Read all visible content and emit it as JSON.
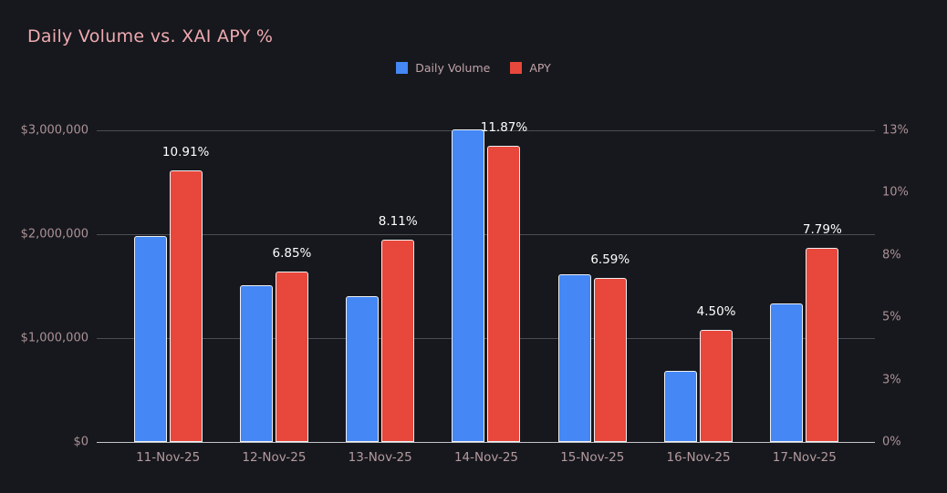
{
  "title": "Daily Volume vs. XAI APY %",
  "colors": {
    "background": "#16181d",
    "title": "#eeaab0",
    "axis_label": "#ac9196",
    "gridline": "#4b4d54",
    "baseline": "#c3c5c9",
    "value_label": "#ffffff",
    "volume_blue": "#4487f5",
    "apy_red": "#e8473c"
  },
  "chart_data": {
    "type": "bar",
    "title": "Daily Volume vs. XAI APY %",
    "grid": "horizontal",
    "legend_position": "top-center",
    "categories": [
      "11-Nov-25",
      "12-Nov-25",
      "13-Nov-25",
      "14-Nov-25",
      "15-Nov-25",
      "16-Nov-25",
      "17-Nov-25"
    ],
    "series": [
      {
        "name": "Daily Volume",
        "axis": "left",
        "color": "#4487f5",
        "values": [
          1980000,
          1510000,
          1400000,
          3010000,
          1615000,
          680000,
          1335000
        ]
      },
      {
        "name": "APY",
        "axis": "right",
        "color": "#e8473c",
        "values": [
          10.91,
          6.85,
          8.11,
          11.87,
          6.59,
          4.5,
          7.79
        ],
        "labels": [
          "10.91%",
          "6.85%",
          "8.11%",
          "11.87%",
          "6.59%",
          "4.50%",
          "7.79%"
        ]
      }
    ],
    "left_axis": {
      "max": 3000000,
      "ticks": [
        {
          "value": 3000000,
          "label": "$3,000,000"
        },
        {
          "value": 2000000,
          "label": "$2,000,000"
        },
        {
          "value": 1000000,
          "label": "$1,000,000"
        },
        {
          "value": 0,
          "label": "$0"
        }
      ]
    },
    "right_axis": {
      "max": 12.5,
      "ticks": [
        {
          "value": 12.5,
          "label": "13%"
        },
        {
          "value": 10,
          "label": "10%"
        },
        {
          "value": 7.5,
          "label": "8%"
        },
        {
          "value": 5,
          "label": "5%"
        },
        {
          "value": 2.5,
          "label": "3%"
        },
        {
          "value": 0,
          "label": "0%"
        }
      ]
    }
  }
}
